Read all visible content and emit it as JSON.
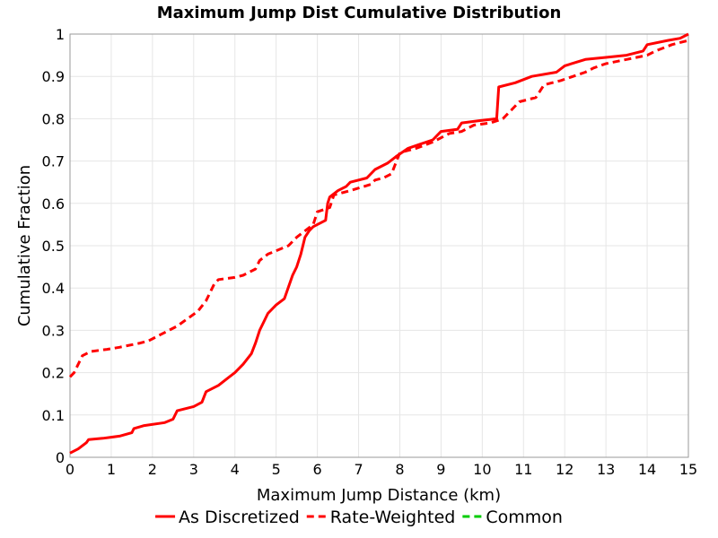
{
  "chart_data": {
    "type": "line",
    "title": "Maximum Jump Dist Cumulative Distribution",
    "xlabel": "Maximum Jump Distance (km)",
    "ylabel": "Cumulative Fraction",
    "xlim": [
      0,
      15
    ],
    "ylim": [
      0,
      1
    ],
    "xticks": [
      0,
      1,
      2,
      3,
      4,
      5,
      6,
      7,
      8,
      9,
      10,
      11,
      12,
      13,
      14,
      15
    ],
    "yticks": [
      0,
      0.1,
      0.2,
      0.3,
      0.4,
      0.5,
      0.6,
      0.7,
      0.8,
      0.9,
      1
    ],
    "ytick_labels": [
      "0",
      "0.1",
      "0.2",
      "0.3",
      "0.4",
      "0.5",
      "0.6",
      "0.7",
      "0.8",
      "0.9",
      "1"
    ],
    "grid": true,
    "legend_position": "bottom",
    "series": [
      {
        "name": "As Discretized",
        "color": "#ff0000",
        "dash": "solid",
        "x": [
          0,
          0.2,
          0.4,
          0.45,
          0.8,
          1.2,
          1.5,
          1.55,
          1.8,
          2.3,
          2.5,
          2.6,
          3.0,
          3.2,
          3.3,
          3.6,
          3.8,
          4.0,
          4.2,
          4.4,
          4.5,
          4.6,
          4.7,
          4.8,
          5.0,
          5.2,
          5.4,
          5.5,
          5.6,
          5.7,
          5.8,
          5.9,
          6.0,
          6.2,
          6.25,
          6.3,
          6.5,
          6.7,
          6.8,
          7.2,
          7.4,
          7.7,
          7.9,
          8.2,
          8.5,
          8.8,
          9.0,
          9.4,
          9.5,
          9.9,
          10.35,
          10.4,
          10.8,
          11.2,
          11.8,
          12.0,
          12.5,
          13.0,
          13.5,
          13.9,
          14.0,
          14.5,
          14.8,
          15.0
        ],
        "y": [
          0.01,
          0.02,
          0.035,
          0.042,
          0.045,
          0.05,
          0.058,
          0.068,
          0.075,
          0.082,
          0.09,
          0.11,
          0.12,
          0.13,
          0.155,
          0.17,
          0.185,
          0.2,
          0.22,
          0.245,
          0.27,
          0.3,
          0.32,
          0.34,
          0.36,
          0.375,
          0.43,
          0.45,
          0.48,
          0.52,
          0.535,
          0.545,
          0.55,
          0.56,
          0.6,
          0.615,
          0.63,
          0.64,
          0.65,
          0.66,
          0.68,
          0.695,
          0.71,
          0.73,
          0.74,
          0.75,
          0.77,
          0.775,
          0.79,
          0.795,
          0.8,
          0.875,
          0.885,
          0.9,
          0.91,
          0.925,
          0.94,
          0.945,
          0.95,
          0.96,
          0.975,
          0.985,
          0.99,
          1.0
        ]
      },
      {
        "name": "Rate-Weighted",
        "color": "#ff0000",
        "dash": "dashed",
        "x": [
          0,
          0.1,
          0.3,
          0.5,
          0.9,
          1.2,
          1.7,
          1.9,
          2.2,
          2.6,
          3.1,
          3.3,
          3.5,
          3.6,
          4.0,
          4.2,
          4.5,
          4.6,
          4.8,
          5.3,
          5.5,
          5.9,
          6.0,
          6.3,
          6.4,
          6.8,
          7.3,
          7.4,
          7.6,
          7.8,
          8.0,
          8.4,
          8.8,
          9.2,
          9.5,
          9.8,
          10.2,
          10.5,
          10.7,
          10.9,
          11.3,
          11.5,
          11.9,
          12.5,
          12.7,
          13.0,
          13.5,
          14.0,
          14.2,
          14.6,
          15.0
        ],
        "y": [
          0.19,
          0.2,
          0.24,
          0.25,
          0.255,
          0.26,
          0.27,
          0.275,
          0.29,
          0.31,
          0.345,
          0.37,
          0.41,
          0.42,
          0.425,
          0.43,
          0.445,
          0.465,
          0.48,
          0.5,
          0.52,
          0.55,
          0.58,
          0.59,
          0.62,
          0.63,
          0.645,
          0.655,
          0.66,
          0.67,
          0.72,
          0.73,
          0.745,
          0.765,
          0.77,
          0.785,
          0.79,
          0.8,
          0.82,
          0.84,
          0.85,
          0.88,
          0.89,
          0.91,
          0.92,
          0.93,
          0.94,
          0.95,
          0.96,
          0.975,
          0.985
        ]
      },
      {
        "name": "Common",
        "color": "#00cc00",
        "dash": "dashed",
        "x": [],
        "y": []
      }
    ]
  }
}
